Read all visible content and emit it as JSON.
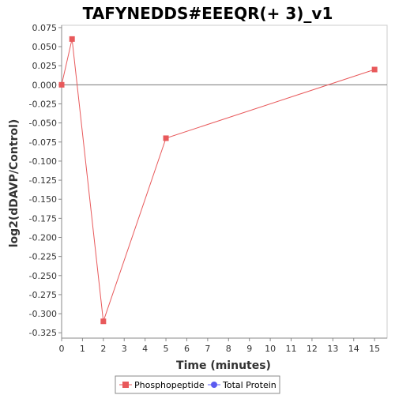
{
  "chart_data": {
    "type": "line",
    "title": "TAFYNEDDS#EEEQR(+ 3)_v1",
    "xlabel": "Time (minutes)",
    "ylabel": "log2(dDAVP/Control)",
    "xlim": [
      0,
      15.6
    ],
    "ylim": [
      -0.332,
      0.078
    ],
    "x_ticks": [
      0,
      1,
      2,
      3,
      4,
      5,
      6,
      7,
      8,
      9,
      10,
      11,
      12,
      13,
      14,
      15
    ],
    "y_ticks": [
      0.075,
      0.05,
      0.025,
      0.0,
      -0.025,
      -0.05,
      -0.075,
      -0.1,
      -0.125,
      -0.15,
      -0.175,
      -0.2,
      -0.225,
      -0.25,
      -0.275,
      -0.3,
      -0.325
    ],
    "y_tick_labels": [
      "0.075",
      "0.050",
      "0.025",
      "0.000",
      "-0.025",
      "-0.050",
      "-0.075",
      "-0.100",
      "-0.125",
      "-0.150",
      "-0.175",
      "-0.200",
      "-0.225",
      "-0.250",
      "-0.275",
      "-0.300",
      "-0.325"
    ],
    "reference_line_y": 0,
    "grid": false,
    "legend_position": "bottom",
    "series": [
      {
        "name": "Phosphopeptide",
        "color": "#e8595b",
        "marker": "square",
        "x": [
          0,
          0.5,
          2,
          5,
          15
        ],
        "y": [
          0.0,
          0.06,
          -0.31,
          -0.07,
          0.02
        ]
      },
      {
        "name": "Total Protein",
        "color": "#5b5bf0",
        "marker": "circle",
        "x": [],
        "y": []
      }
    ]
  }
}
